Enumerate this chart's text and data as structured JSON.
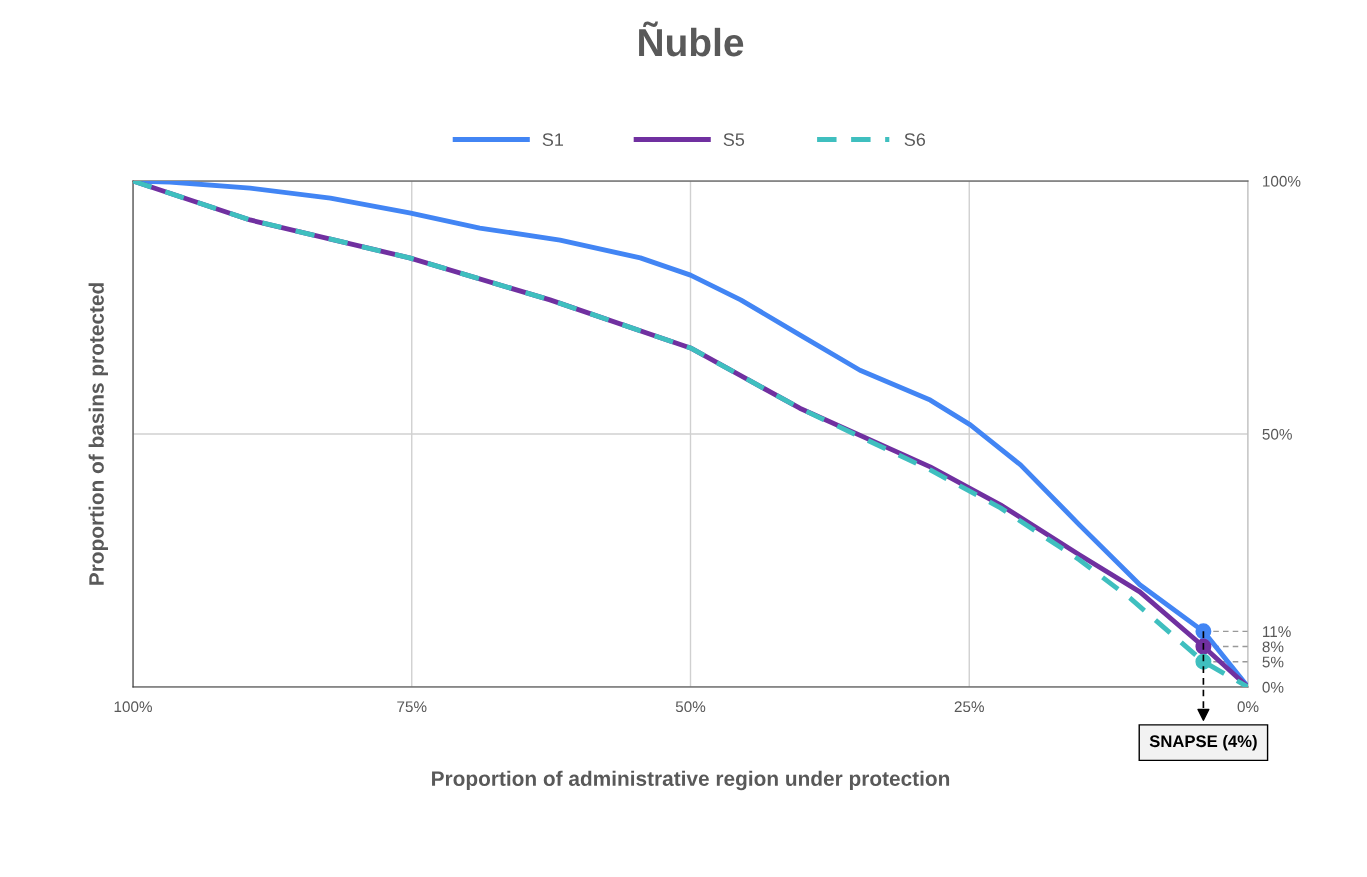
{
  "chart_data": {
    "type": "line",
    "title": "Ñuble",
    "xlabel": "Proportion of administrative region under protection",
    "ylabel": "Proportion of basins protected",
    "xlim": [
      100,
      0
    ],
    "xticks": [
      {
        "value": 100,
        "label": "100%"
      },
      {
        "value": 75,
        "label": "75%"
      },
      {
        "value": 50,
        "label": "50%"
      },
      {
        "value": 25,
        "label": "25%"
      },
      {
        "value": 0,
        "label": "0%"
      }
    ],
    "ylim": [
      0,
      100
    ],
    "yticks": [
      {
        "value": 0,
        "label": "0%"
      },
      {
        "value": 5,
        "label": "5%"
      },
      {
        "value": 8,
        "label": "8%"
      },
      {
        "value": 11,
        "label": "11%"
      },
      {
        "value": 50,
        "label": "50%"
      },
      {
        "value": 100,
        "label": "100%"
      }
    ],
    "ref_lines": [
      {
        "axis": "x",
        "value": 4,
        "label": "SNAPSE (4%)",
        "color": "#000000",
        "line_style": "dashed"
      }
    ],
    "grid": true,
    "legend": "top",
    "marker": "none",
    "series": [
      {
        "name": "S1",
        "color": "#4285f4",
        "line_style": "solid",
        "x": [
          100,
          96.7,
          89.5,
          82.3,
          75.2,
          68.9,
          61.7,
          54.5,
          50,
          45.5,
          40.2,
          34.8,
          28.5,
          24.9,
          20.4,
          15.1,
          9.7,
          4,
          0
        ],
        "values": [
          100,
          99.8,
          98.6,
          96.6,
          93.7,
          90.7,
          88.3,
          84.8,
          81.4,
          76.5,
          69.6,
          62.6,
          56.7,
          51.8,
          43.9,
          32,
          20.2,
          11,
          0
        ]
      },
      {
        "name": "S5",
        "color": "#7030a0",
        "line_style": "solid",
        "x": [
          100,
          89.5,
          75.2,
          62.6,
          50,
          40.2,
          28.5,
          22.2,
          15.1,
          9.7,
          4,
          0
        ],
        "values": [
          100,
          92.3,
          84.8,
          76.5,
          67,
          55.1,
          43.5,
          36,
          26.1,
          18.8,
          8,
          0
        ]
      },
      {
        "name": "S6",
        "color": "#3fbfbf",
        "line_style": "dashed",
        "x": [
          100,
          89.5,
          75.2,
          62.6,
          50,
          40.2,
          28.5,
          22.2,
          15.1,
          10.6,
          4,
          0
        ],
        "values": [
          100,
          92.3,
          84.8,
          76.5,
          67,
          55.1,
          42.9,
          35.4,
          25.1,
          17.6,
          5,
          0
        ]
      },
      {
        "type": "scatter",
        "color": "#4285f4",
        "marker": "circle",
        "x": [
          4
        ],
        "values": [
          11
        ],
        "xerrors": [
          [
            0,
            4
          ]
        ]
      },
      {
        "type": "scatter",
        "color": "#7030a0",
        "marker": "circle",
        "x": [
          4
        ],
        "values": [
          8
        ],
        "xerrors": [
          [
            0,
            4
          ]
        ]
      },
      {
        "type": "scatter",
        "color": "#3fbfbf",
        "marker": "circle",
        "x": [
          4
        ],
        "values": [
          5
        ],
        "xerrors": [
          [
            0,
            4
          ]
        ]
      }
    ]
  }
}
